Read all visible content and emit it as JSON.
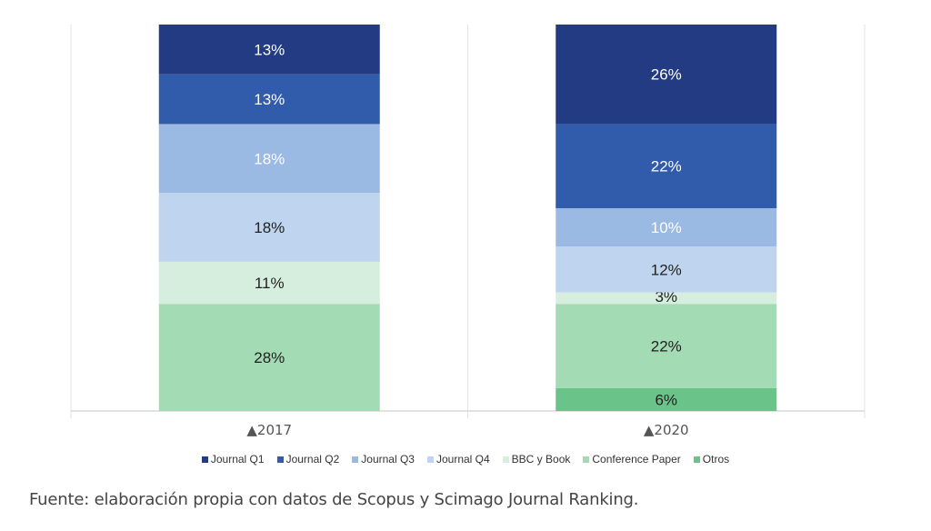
{
  "chart_data": {
    "type": "bar",
    "stacked": true,
    "percent_stacked": true,
    "categories": [
      "2017",
      "2020"
    ],
    "series": [
      {
        "name": "Otros",
        "values": [
          0,
          6
        ],
        "color": "#6ac48a",
        "label_color": "#222222"
      },
      {
        "name": "Conference Paper",
        "values": [
          28,
          22
        ],
        "color": "#a3dbb4",
        "label_color": "#222222"
      },
      {
        "name": "BBC y Book",
        "values": [
          11,
          3
        ],
        "color": "#d6eedd",
        "label_color": "#222222"
      },
      {
        "name": "Journal Q4",
        "values": [
          18,
          12
        ],
        "color": "#bfd4ef",
        "label_color": "#222222"
      },
      {
        "name": "Journal Q3",
        "values": [
          18,
          10
        ],
        "color": "#9ab9e3",
        "label_color": "#ffffff"
      },
      {
        "name": "Journal Q2",
        "values": [
          13,
          22
        ],
        "color": "#315bab",
        "label_color": "#ffffff"
      },
      {
        "name": "Journal Q1",
        "values": [
          13,
          26
        ],
        "color": "#233b82",
        "label_color": "#ffffff"
      }
    ],
    "data_labels": [
      [
        "0%",
        "6%"
      ],
      [
        "28%",
        "22%"
      ],
      [
        "11%",
        "3%"
      ],
      [
        "18%",
        "12%"
      ],
      [
        "18%",
        "10%"
      ],
      [
        "13%",
        "22%"
      ],
      [
        "13%",
        "26%"
      ]
    ],
    "legend_order": [
      "Journal Q1",
      "Journal Q2",
      "Journal Q3",
      "Journal Q4",
      "BBC y Book",
      "Conference Paper",
      "Otros"
    ],
    "title": "",
    "xlabel": "",
    "ylabel": "",
    "ylim": [
      0,
      100
    ],
    "grid": true,
    "legend_position": "bottom",
    "tick_marker": "▲"
  },
  "source_note": "Fuente: elaboración propia con datos de Scopus y Scimago Journal Ranking."
}
